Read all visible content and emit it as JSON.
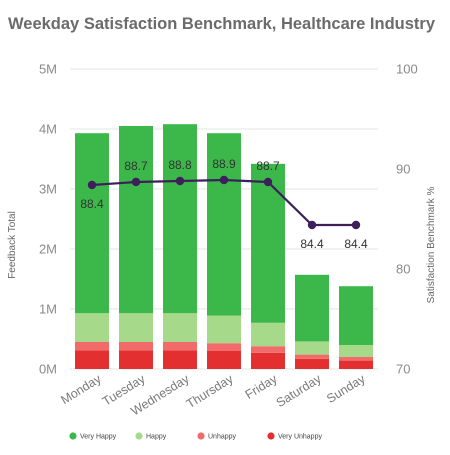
{
  "chart_data": {
    "type": "bar",
    "title": "Weekday Satisfaction Benchmark, Healthcare Industry",
    "categories": [
      "Monday",
      "Tuesday",
      "Wednesday",
      "Thursday",
      "Friday",
      "Saturday",
      "Sunday"
    ],
    "ylabel": "Feedback Total",
    "y2label": "Satisfaction Benchmark %",
    "ylim": [
      0,
      5000000
    ],
    "y2lim": [
      70,
      100
    ],
    "y_ticks": [
      "0M",
      "1M",
      "2M",
      "3M",
      "4M",
      "5M"
    ],
    "y2_ticks": [
      "70",
      "80",
      "90",
      "100"
    ],
    "grid": true,
    "legend_position": "bottom",
    "series": [
      {
        "name": "Very Unhappy",
        "color": "#e32f2f",
        "values": [
          310000,
          310000,
          310000,
          300000,
          270000,
          170000,
          140000
        ]
      },
      {
        "name": "Unhappy",
        "color": "#f26b6b",
        "values": [
          140000,
          140000,
          140000,
          130000,
          110000,
          70000,
          60000
        ]
      },
      {
        "name": "Happy",
        "color": "#a6d98a",
        "values": [
          480000,
          480000,
          480000,
          460000,
          390000,
          220000,
          200000
        ]
      },
      {
        "name": "Very Happy",
        "color": "#3cb84a",
        "values": [
          3000000,
          3120000,
          3150000,
          3040000,
          2650000,
          1110000,
          980000
        ]
      }
    ],
    "line": {
      "values": [
        88.4,
        88.7,
        88.8,
        88.9,
        88.7,
        84.4,
        84.4
      ],
      "labels": [
        "88.4",
        "88.7",
        "88.8",
        "88.9",
        "88.7",
        "84.4",
        "84.4"
      ],
      "color": "#3d1f5b",
      "axis": "right"
    },
    "legend": [
      {
        "label": "Very Happy",
        "color": "#3cb84a"
      },
      {
        "label": "Happy",
        "color": "#a6d98a"
      },
      {
        "label": "Unhappy",
        "color": "#f26b6b"
      },
      {
        "label": "Very Unhappy",
        "color": "#e32f2f"
      }
    ]
  }
}
